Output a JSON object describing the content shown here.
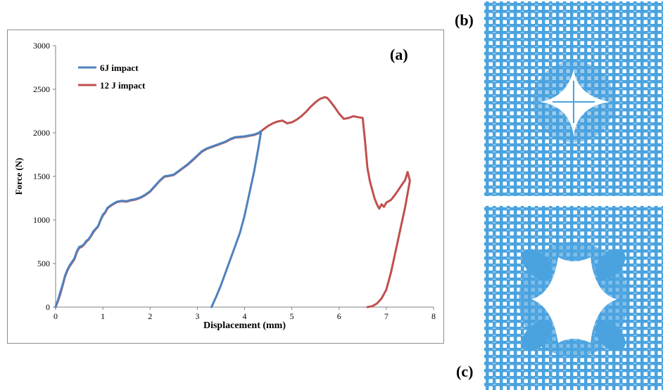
{
  "chart_data": {
    "type": "line",
    "panel_label": "(a)",
    "title": "",
    "xlabel": "Displacement (mm)",
    "ylabel": "Force (N)",
    "xlim": [
      0,
      8
    ],
    "ylim": [
      0,
      3000
    ],
    "xticks": [
      "0",
      "1",
      "2",
      "3",
      "4",
      "5",
      "6",
      "7",
      "8"
    ],
    "yticks": [
      "0",
      "500",
      "1000",
      "1500",
      "2000",
      "2500",
      "3000"
    ],
    "grid": false,
    "legend_position": "top-left",
    "series": [
      {
        "name": "6J impact",
        "color": "#4F81BD",
        "points": [
          [
            0,
            0
          ],
          [
            0.05,
            80
          ],
          [
            0.1,
            170
          ],
          [
            0.15,
            260
          ],
          [
            0.2,
            360
          ],
          [
            0.25,
            430
          ],
          [
            0.3,
            480
          ],
          [
            0.35,
            520
          ],
          [
            0.4,
            560
          ],
          [
            0.45,
            640
          ],
          [
            0.5,
            690
          ],
          [
            0.55,
            700
          ],
          [
            0.6,
            720
          ],
          [
            0.65,
            760
          ],
          [
            0.7,
            780
          ],
          [
            0.75,
            820
          ],
          [
            0.8,
            870
          ],
          [
            0.85,
            900
          ],
          [
            0.9,
            930
          ],
          [
            0.95,
            1000
          ],
          [
            1.0,
            1060
          ],
          [
            1.05,
            1090
          ],
          [
            1.1,
            1140
          ],
          [
            1.2,
            1180
          ],
          [
            1.3,
            1210
          ],
          [
            1.4,
            1220
          ],
          [
            1.5,
            1215
          ],
          [
            1.6,
            1230
          ],
          [
            1.7,
            1240
          ],
          [
            1.8,
            1260
          ],
          [
            1.9,
            1290
          ],
          [
            2.0,
            1330
          ],
          [
            2.1,
            1390
          ],
          [
            2.2,
            1450
          ],
          [
            2.3,
            1500
          ],
          [
            2.4,
            1510
          ],
          [
            2.5,
            1520
          ],
          [
            2.6,
            1560
          ],
          [
            2.7,
            1600
          ],
          [
            2.8,
            1640
          ],
          [
            2.9,
            1690
          ],
          [
            3.0,
            1740
          ],
          [
            3.1,
            1790
          ],
          [
            3.2,
            1820
          ],
          [
            3.3,
            1840
          ],
          [
            3.4,
            1860
          ],
          [
            3.5,
            1880
          ],
          [
            3.6,
            1900
          ],
          [
            3.7,
            1930
          ],
          [
            3.8,
            1950
          ],
          [
            3.9,
            1955
          ],
          [
            4.0,
            1960
          ],
          [
            4.1,
            1970
          ],
          [
            4.2,
            1980
          ],
          [
            4.3,
            2000
          ],
          [
            4.35,
            2020
          ],
          [
            4.3,
            1850
          ],
          [
            4.2,
            1550
          ],
          [
            4.1,
            1300
          ],
          [
            4.0,
            1050
          ],
          [
            3.9,
            850
          ],
          [
            3.8,
            700
          ],
          [
            3.7,
            550
          ],
          [
            3.6,
            400
          ],
          [
            3.5,
            250
          ],
          [
            3.4,
            120
          ],
          [
            3.3,
            0
          ]
        ]
      },
      {
        "name": "12 J impact",
        "color": "#C0504D",
        "points": [
          [
            0,
            0
          ],
          [
            0.05,
            70
          ],
          [
            0.1,
            150
          ],
          [
            0.15,
            250
          ],
          [
            0.2,
            350
          ],
          [
            0.25,
            420
          ],
          [
            0.3,
            470
          ],
          [
            0.35,
            510
          ],
          [
            0.4,
            550
          ],
          [
            0.45,
            630
          ],
          [
            0.5,
            680
          ],
          [
            0.55,
            690
          ],
          [
            0.6,
            715
          ],
          [
            0.65,
            750
          ],
          [
            0.7,
            775
          ],
          [
            0.75,
            815
          ],
          [
            0.8,
            860
          ],
          [
            0.85,
            895
          ],
          [
            0.9,
            925
          ],
          [
            0.95,
            995
          ],
          [
            1.0,
            1050
          ],
          [
            1.05,
            1085
          ],
          [
            1.1,
            1135
          ],
          [
            1.2,
            1175
          ],
          [
            1.3,
            1205
          ],
          [
            1.4,
            1215
          ],
          [
            1.5,
            1210
          ],
          [
            1.6,
            1225
          ],
          [
            1.7,
            1235
          ],
          [
            1.8,
            1255
          ],
          [
            1.9,
            1285
          ],
          [
            2.0,
            1325
          ],
          [
            2.1,
            1385
          ],
          [
            2.2,
            1445
          ],
          [
            2.3,
            1495
          ],
          [
            2.4,
            1505
          ],
          [
            2.5,
            1515
          ],
          [
            2.6,
            1555
          ],
          [
            2.7,
            1595
          ],
          [
            2.8,
            1635
          ],
          [
            2.9,
            1685
          ],
          [
            3.0,
            1735
          ],
          [
            3.1,
            1785
          ],
          [
            3.2,
            1815
          ],
          [
            3.3,
            1835
          ],
          [
            3.4,
            1855
          ],
          [
            3.5,
            1875
          ],
          [
            3.6,
            1895
          ],
          [
            3.7,
            1925
          ],
          [
            3.8,
            1945
          ],
          [
            3.9,
            1950
          ],
          [
            4.0,
            1955
          ],
          [
            4.1,
            1965
          ],
          [
            4.2,
            1975
          ],
          [
            4.3,
            1995
          ],
          [
            4.4,
            2040
          ],
          [
            4.5,
            2080
          ],
          [
            4.6,
            2110
          ],
          [
            4.7,
            2130
          ],
          [
            4.8,
            2140
          ],
          [
            4.9,
            2110
          ],
          [
            5.0,
            2120
          ],
          [
            5.1,
            2150
          ],
          [
            5.2,
            2190
          ],
          [
            5.3,
            2240
          ],
          [
            5.4,
            2300
          ],
          [
            5.5,
            2350
          ],
          [
            5.6,
            2390
          ],
          [
            5.7,
            2410
          ],
          [
            5.75,
            2400
          ],
          [
            5.8,
            2370
          ],
          [
            5.9,
            2300
          ],
          [
            6.0,
            2220
          ],
          [
            6.1,
            2160
          ],
          [
            6.2,
            2170
          ],
          [
            6.3,
            2190
          ],
          [
            6.4,
            2180
          ],
          [
            6.5,
            2170
          ],
          [
            6.55,
            1900
          ],
          [
            6.6,
            1600
          ],
          [
            6.65,
            1450
          ],
          [
            6.7,
            1350
          ],
          [
            6.75,
            1250
          ],
          [
            6.8,
            1180
          ],
          [
            6.85,
            1130
          ],
          [
            6.9,
            1180
          ],
          [
            6.95,
            1150
          ],
          [
            7.0,
            1200
          ],
          [
            7.1,
            1230
          ],
          [
            7.2,
            1300
          ],
          [
            7.3,
            1380
          ],
          [
            7.4,
            1460
          ],
          [
            7.45,
            1550
          ],
          [
            7.5,
            1450
          ],
          [
            7.4,
            1150
          ],
          [
            7.3,
            900
          ],
          [
            7.2,
            650
          ],
          [
            7.1,
            400
          ],
          [
            7.0,
            200
          ],
          [
            6.9,
            100
          ],
          [
            6.8,
            40
          ],
          [
            6.7,
            10
          ],
          [
            6.6,
            0
          ]
        ]
      }
    ]
  },
  "panels": {
    "b_label": "(b)",
    "c_label": "(c)",
    "mesh_color": "#4AA3DF"
  }
}
